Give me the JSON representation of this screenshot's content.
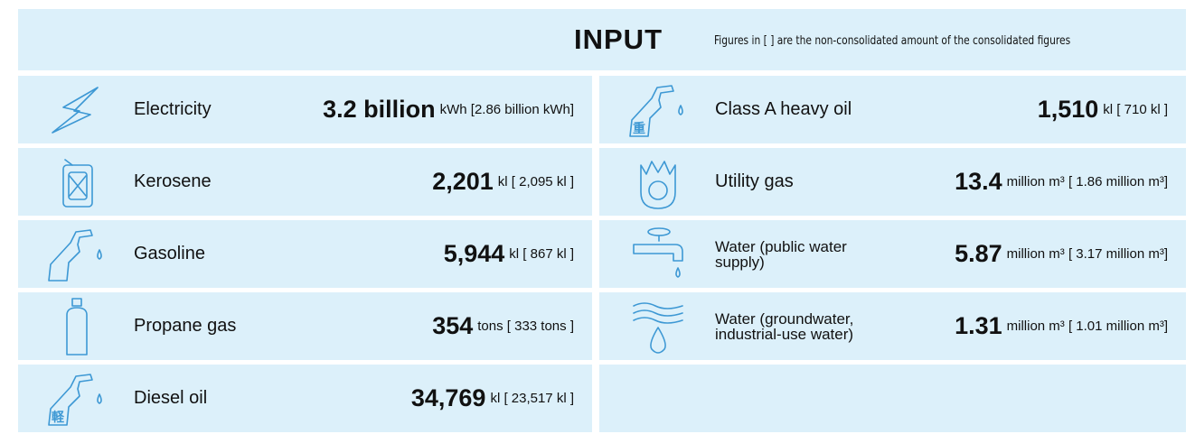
{
  "header": {
    "title": "INPUT",
    "note": "Figures in [ ] are the non-consolidated amount of the consolidated figures"
  },
  "left": [
    {
      "label": "Electricity",
      "amount": "3.2 billion",
      "unit": "kWh [2.86 billion kWh]"
    },
    {
      "label": "Kerosene",
      "amount": "2,201",
      "unit": "kl [ 2,095 kl ]"
    },
    {
      "label": "Gasoline",
      "amount": "5,944",
      "unit": "kl [ 867 kl ]"
    },
    {
      "label": "Propane gas",
      "amount": "354",
      "unit": "tons [ 333 tons ]"
    },
    {
      "label": "Diesel oil",
      "amount": "34,769",
      "unit": "kl [ 23,517 kl ]",
      "icon_mark": "軽"
    }
  ],
  "right": [
    {
      "label": "Class A heavy oil",
      "amount": "1,510",
      "unit": "kl [ 710 kl ]",
      "icon_mark": "重"
    },
    {
      "label": "Utility gas",
      "amount": "13.4",
      "unit": "million m³ [ 1.86 million m³]"
    },
    {
      "label": "Water (public water supply)",
      "amount": "5.87",
      "unit": "million m³ [ 3.17 million m³]"
    },
    {
      "label": "Water (groundwater, industrial-use water)",
      "amount": "1.31",
      "unit": "million m³ [ 1.01 million m³]"
    }
  ]
}
